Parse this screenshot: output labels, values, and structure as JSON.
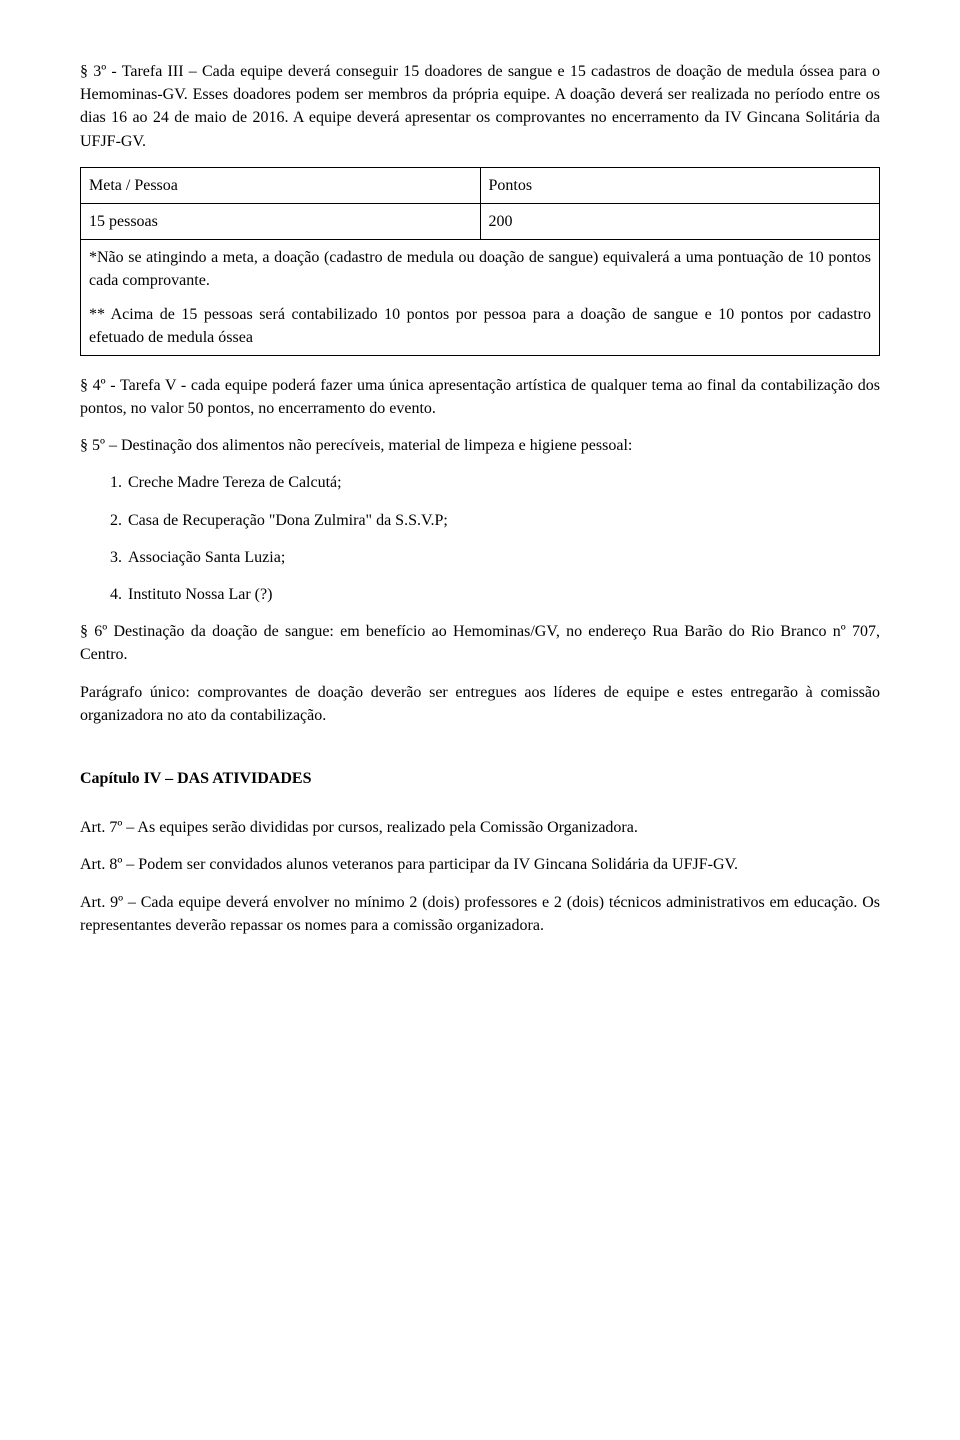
{
  "p1": "§ 3º - Tarefa III – Cada equipe deverá conseguir 15 doadores de sangue e 15 cadastros de doação de medula óssea para o Hemominas-GV. Esses doadores podem ser membros da própria equipe. A doação deverá ser realizada no período entre os dias 16 ao 24 de maio de 2016. A equipe deverá apresentar os comprovantes no encerramento da IV Gincana Solitária da UFJF-GV.",
  "table": {
    "header_left": "Meta / Pessoa",
    "header_right": "Pontos",
    "row_left": "15 pessoas",
    "row_right": "200",
    "note1": "*Não se atingindo a meta, a doação (cadastro de medula ou doação de sangue) equivalerá a uma pontuação de 10 pontos cada comprovante.",
    "note2": "** Acima de 15 pessoas será contabilizado 10 pontos por pessoa para a doação de sangue e 10 pontos por cadastro efetuado de medula óssea"
  },
  "p2": "§ 4º - Tarefa V - cada equipe poderá fazer uma única apresentação artística de qualquer tema ao final da contabilização dos pontos, no valor 50 pontos, no encerramento do evento.",
  "p3": "§ 5º – Destinação dos alimentos não perecíveis, material de limpeza e higiene pessoal:",
  "dest": {
    "i1": "Creche Madre Tereza de Calcutá;",
    "i2": "Casa de Recuperação \"Dona Zulmira\" da S.S.V.P;",
    "i3": "Associação Santa Luzia;",
    "i4": "Instituto Nossa Lar (?)"
  },
  "p4": "§ 6º Destinação da doação de sangue: em benefício ao Hemominas/GV, no endereço Rua Barão do Rio Branco nº 707, Centro.",
  "p5": "Parágrafo único: comprovantes de doação deverão ser entregues aos líderes de equipe e estes entregarão à comissão organizadora no ato da contabilização.",
  "chapter": "Capítulo IV – DAS ATIVIDADES",
  "art7": "Art. 7º – As equipes serão divididas por cursos, realizado pela Comissão Organizadora.",
  "art8": "Art. 8º – Podem ser convidados alunos veteranos para participar da IV Gincana Solidária da UFJF-GV.",
  "art9": "Art. 9º – Cada equipe deverá envolver no mínimo 2 (dois) professores e 2 (dois) técnicos administrativos em educação. Os representantes deverão repassar os nomes para a comissão organizadora."
}
